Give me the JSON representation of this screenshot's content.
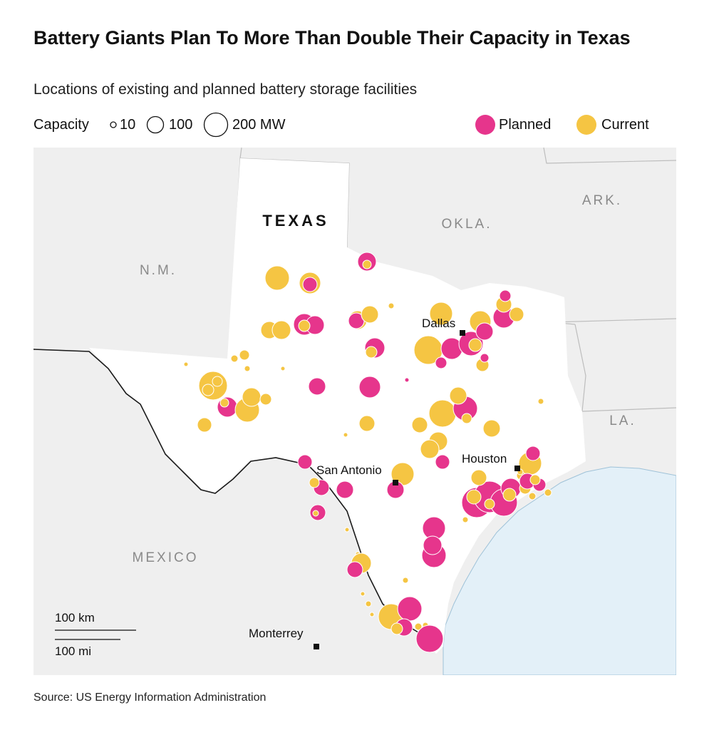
{
  "header": {
    "title": "Battery Giants Plan To More Than Double Their Capacity in Texas",
    "subtitle": "Locations of existing and planned battery storage facilities"
  },
  "legend": {
    "capacity_label": "Capacity",
    "sizes": [
      {
        "label": "10",
        "value": 10
      },
      {
        "label": "100",
        "value": 100
      },
      {
        "label": "200 MW",
        "value": 200
      }
    ],
    "status": [
      {
        "label": "Planned",
        "color": "#e6358c"
      },
      {
        "label": "Current",
        "color": "#f5c543"
      }
    ]
  },
  "map": {
    "state_label": "TEXAS",
    "region_labels": [
      "N.M.",
      "OKLA.",
      "ARK.",
      "LA.",
      "MEXICO"
    ],
    "cities": [
      "Dallas",
      "San Antonio",
      "Houston",
      "Monterrey"
    ],
    "scale": {
      "km": "100 km",
      "mi": "100 mi"
    },
    "colors": {
      "land": "#efefef",
      "texas": "#ffffff",
      "water": "#e3f0f8",
      "border": "#1a1a1a",
      "state_lines": "#bdbdbd"
    }
  },
  "source": "Source: US Energy Information Administration"
}
